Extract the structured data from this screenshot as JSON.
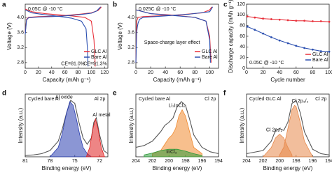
{
  "chart_data": [
    {
      "type": "line",
      "label": "a",
      "title": "0.05C @ -10 °C",
      "xlabel": "Capacity (mAh g⁻¹)",
      "ylabel": "Voltage (V)",
      "xlim": [
        0,
        125
      ],
      "ylim": [
        2.65,
        4.35
      ],
      "xticks": [
        0,
        20,
        40,
        60,
        80,
        100,
        120
      ],
      "yticks": [
        2.8,
        3.2,
        3.6,
        {
          "value": 4,
          "label": "4.0"
        }
      ],
      "legend": "lower right",
      "series": [
        {
          "name": "GLC Al",
          "color": "#e8303a",
          "x": [
            0,
            2,
            5,
            20,
            40,
            60,
            80,
            100,
            110,
            114,
            115,
            null,
            0,
            10,
            30,
            50,
            70,
            90,
            100,
            104,
            106
          ],
          "values": [
            3.6,
            3.95,
            4.0,
            4.02,
            4.03,
            4.05,
            4.08,
            4.12,
            4.18,
            4.25,
            4.28,
            null,
            4.22,
            4.15,
            4.1,
            4.07,
            4.04,
            4.0,
            3.9,
            3.4,
            2.7
          ]
        },
        {
          "name": "Bare Al",
          "color": "#2b4fb0",
          "x": [
            0,
            2,
            5,
            20,
            40,
            60,
            80,
            100,
            108,
            112,
            114,
            null,
            0,
            10,
            30,
            50,
            70,
            85,
            92,
            94,
            95
          ],
          "values": [
            3.55,
            3.93,
            3.99,
            4.01,
            4.02,
            4.04,
            4.07,
            4.11,
            4.17,
            4.24,
            4.28,
            null,
            4.2,
            4.12,
            4.07,
            4.03,
            3.98,
            3.9,
            3.7,
            3.2,
            2.7
          ]
        }
      ],
      "annotations": [
        {
          "text": "CE=81.0%",
          "color": "#2b4fb0"
        },
        {
          "text": "CE=91.3%",
          "color": "#e8303a"
        }
      ]
    },
    {
      "type": "line",
      "label": "b",
      "title": "0.025C @ -10 °C",
      "xlabel": "Capacity (mAh g⁻¹)",
      "ylabel": "Voltage (V)",
      "xlim": [
        0,
        112
      ],
      "ylim": [
        2.65,
        4.35
      ],
      "xticks": [
        0,
        20,
        40,
        60,
        80,
        100
      ],
      "yticks": [
        2.8,
        3.2,
        3.6,
        {
          "value": 4,
          "label": "4.0"
        }
      ],
      "legend": "lower right",
      "series": [
        {
          "name": "GLC Al",
          "color": "#e8303a",
          "x": [
            0,
            1,
            3,
            10,
            30,
            60,
            90,
            100,
            103,
            null,
            0,
            20,
            50,
            80,
            95,
            100,
            102
          ],
          "values": [
            2.8,
            3.9,
            4.0,
            4.02,
            4.04,
            4.07,
            4.12,
            4.2,
            4.28,
            null,
            4.2,
            4.1,
            4.06,
            4.0,
            3.9,
            3.5,
            2.8
          ]
        },
        {
          "name": "Bare Al",
          "color": "#2b4fb0",
          "x": [
            0,
            1,
            2,
            3,
            5,
            10,
            40,
            70,
            100,
            104,
            null,
            0,
            20,
            50,
            80,
            95,
            100,
            101
          ],
          "values": [
            2.8,
            3.6,
            3.75,
            3.85,
            3.95,
            4.0,
            4.04,
            4.08,
            4.15,
            4.28,
            null,
            4.2,
            4.1,
            4.05,
            4.0,
            3.9,
            3.4,
            2.8
          ]
        }
      ],
      "annotations": [
        {
          "text": "Space-charge layer effect",
          "color": "#1f3f8f"
        }
      ]
    },
    {
      "type": "line",
      "label": "c",
      "title": "0.05C @ -10 °C",
      "xlabel": "Cycle number",
      "ylabel": "Discharge capacity (mAh g⁻¹)",
      "xlim": [
        0,
        100
      ],
      "ylim": [
        0,
        120
      ],
      "xticks": [
        0,
        20,
        40,
        60,
        80,
        100
      ],
      "yticks": [
        0,
        20,
        40,
        60,
        80,
        100,
        120
      ],
      "legend": "lower right",
      "marker": true,
      "series": [
        {
          "name": "GLC Al",
          "color": "#e8303a",
          "x": [
            1,
            10,
            20,
            30,
            40,
            50,
            60,
            70,
            80,
            90,
            100
          ],
          "values": [
            97,
            95,
            93,
            92,
            91,
            90,
            89,
            89,
            88,
            88,
            87
          ]
        },
        {
          "name": "Bare Al",
          "color": "#2b4fb0",
          "x": [
            1,
            10,
            20,
            30,
            40,
            50,
            60,
            70,
            80,
            90,
            100
          ],
          "values": [
            78,
            72,
            65,
            58,
            52,
            47,
            42,
            38,
            35,
            32,
            31
          ]
        }
      ],
      "annotations": []
    },
    {
      "type": "line",
      "label": "d",
      "title": "Cycled bare Al",
      "xlabel": "Binding energy (eV)",
      "ylabel": "Intensity (a.u.)",
      "xlim": [
        81,
        71
      ],
      "ylim": [
        0,
        1
      ],
      "xticks": [
        81,
        78,
        75,
        72
      ],
      "yticks": [],
      "series": [
        {
          "color": "#555555",
          "x": [
            81,
            80,
            79,
            78,
            77,
            76.5,
            76,
            75.5,
            75,
            74.5,
            74,
            73.5,
            73,
            72.7,
            72.4,
            72,
            71.5,
            71
          ],
          "values": [
            0.02,
            0.03,
            0.05,
            0.1,
            0.25,
            0.45,
            0.7,
            0.9,
            0.85,
            0.55,
            0.3,
            0.2,
            0.3,
            0.55,
            0.62,
            0.35,
            0.1,
            0.05
          ]
        },
        {
          "name": "Al oxide",
          "color": "#2b3fb0",
          "style": "area",
          "x": [
            78,
            77,
            76.5,
            76,
            75.6,
            75.2,
            74.8,
            74.4,
            74,
            73.5,
            73
          ],
          "values": [
            0,
            0.15,
            0.38,
            0.7,
            0.88,
            0.82,
            0.6,
            0.35,
            0.15,
            0.05,
            0
          ]
        },
        {
          "name": "Al metal",
          "color": "#e02020",
          "style": "area",
          "x": [
            73.6,
            73.2,
            72.8,
            72.5,
            72.2,
            71.8,
            71.4
          ],
          "values": [
            0,
            0.15,
            0.45,
            0.6,
            0.45,
            0.15,
            0
          ]
        }
      ],
      "annotations": [
        {
          "text": "Al 2p",
          "color": "#000000"
        }
      ]
    },
    {
      "type": "line",
      "label": "e",
      "title": "Cycled bare Al",
      "xlabel": "Binding energy (eV)",
      "ylabel": "Intensity (a.u.)",
      "xlim": [
        204,
        194
      ],
      "ylim": [
        0,
        1
      ],
      "xticks": [
        204,
        202,
        200,
        198,
        196,
        194
      ],
      "yticks": [],
      "series": [
        {
          "color": "#555555",
          "x": [
            204,
            203,
            202,
            201,
            200.5,
            200,
            199.5,
            199,
            198.5,
            198,
            197.5,
            197,
            196,
            195,
            194
          ],
          "values": [
            0.15,
            0.18,
            0.25,
            0.4,
            0.5,
            0.55,
            0.62,
            0.8,
            0.88,
            0.82,
            0.6,
            0.35,
            0.15,
            0.08,
            0.05
          ]
        },
        {
          "name": "Li₃InCl₆",
          "color": "#f08a30",
          "style": "area",
          "x": [
            202,
            201,
            200.5,
            200,
            199.6,
            199.2,
            198.8,
            198.4,
            198,
            197.5,
            197,
            196
          ],
          "values": [
            0.05,
            0.1,
            0.2,
            0.3,
            0.35,
            0.45,
            0.65,
            0.75,
            0.65,
            0.4,
            0.15,
            0.05
          ]
        },
        {
          "name": "InCl₃",
          "color": "#2e9a3a",
          "style": "area",
          "x": [
            203,
            202,
            201,
            200,
            199,
            198,
            197,
            196
          ],
          "values": [
            0.03,
            0.06,
            0.1,
            0.12,
            0.12,
            0.09,
            0.05,
            0.02
          ]
        }
      ],
      "annotations": [
        {
          "text": "Cl 2p",
          "color": "#000000"
        }
      ]
    },
    {
      "type": "line",
      "label": "f",
      "title": "Cycled GLC Al",
      "xlabel": "Binding energy (eV)",
      "ylabel": "Intensity (a.u.)",
      "xlim": [
        204,
        194
      ],
      "ylim": [
        0,
        1
      ],
      "xticks": [
        204,
        202,
        200,
        198,
        196,
        194
      ],
      "yticks": [],
      "series": [
        {
          "color": "#555555",
          "x": [
            204,
            202,
            201,
            200.5,
            200,
            199.5,
            199,
            198.5,
            198,
            197.5,
            197,
            196,
            195,
            194
          ],
          "values": [
            0.05,
            0.1,
            0.25,
            0.42,
            0.45,
            0.42,
            0.55,
            0.85,
            0.9,
            0.7,
            0.4,
            0.12,
            0.05,
            0.03
          ]
        },
        {
          "name": "Cl 2p₁/₂",
          "color": "#e8884a",
          "style": "area",
          "x": [
            202,
            201,
            200.5,
            200,
            199.5,
            199,
            198.5
          ],
          "values": [
            0,
            0.15,
            0.3,
            0.36,
            0.3,
            0.15,
            0.03
          ]
        },
        {
          "name": "Cl 2p₃/₂",
          "color": "#e8884a",
          "style": "area",
          "x": [
            200,
            199.5,
            199,
            198.5,
            198.2,
            198,
            197.5,
            197,
            196
          ],
          "values": [
            0.03,
            0.15,
            0.45,
            0.75,
            0.82,
            0.8,
            0.55,
            0.25,
            0
          ]
        }
      ],
      "annotations": [
        {
          "text": "Cl 2p",
          "color": "#000000"
        }
      ]
    }
  ]
}
